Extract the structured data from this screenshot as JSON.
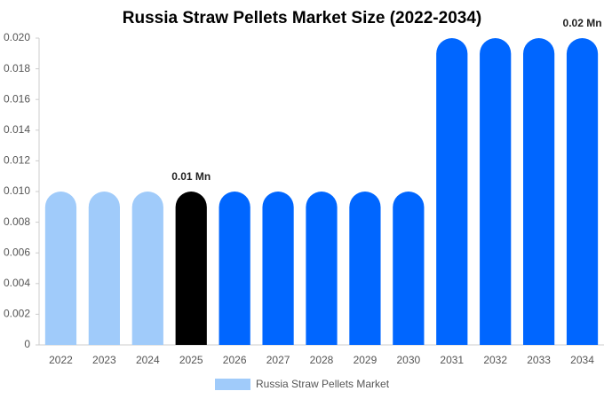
{
  "chart_data": {
    "type": "bar",
    "title": "Russia Straw Pellets Market Size (2022-2034)",
    "categories": [
      "2022",
      "2023",
      "2024",
      "2025",
      "2026",
      "2027",
      "2028",
      "2029",
      "2030",
      "2031",
      "2032",
      "2033",
      "2034"
    ],
    "series": [
      {
        "name": "Russia Straw Pellets Market",
        "color": "#a0cbfa",
        "colors": [
          "#a0cbfa",
          "#a0cbfa",
          "#a0cbfa",
          "#000000",
          "#0066ff",
          "#0066ff",
          "#0066ff",
          "#0066ff",
          "#0066ff",
          "#0066ff",
          "#0066ff",
          "#0066ff",
          "#0066ff"
        ],
        "values": [
          0.01,
          0.01,
          0.01,
          0.01,
          0.01,
          0.01,
          0.01,
          0.01,
          0.01,
          0.02,
          0.02,
          0.02,
          0.02
        ],
        "value_labels": [
          null,
          null,
          null,
          "0.01 Mn",
          null,
          null,
          null,
          null,
          null,
          null,
          null,
          null,
          "0.02 Mn"
        ]
      }
    ],
    "ylim": [
      0,
      0.02
    ],
    "yticks": [
      0,
      0.002,
      0.004,
      0.006,
      0.008,
      {
        "value": 0.01,
        "label": "0.010"
      },
      0.012,
      0.014,
      0.016,
      0.018,
      {
        "value": 0.02,
        "label": "0.020"
      }
    ],
    "grid": false
  }
}
